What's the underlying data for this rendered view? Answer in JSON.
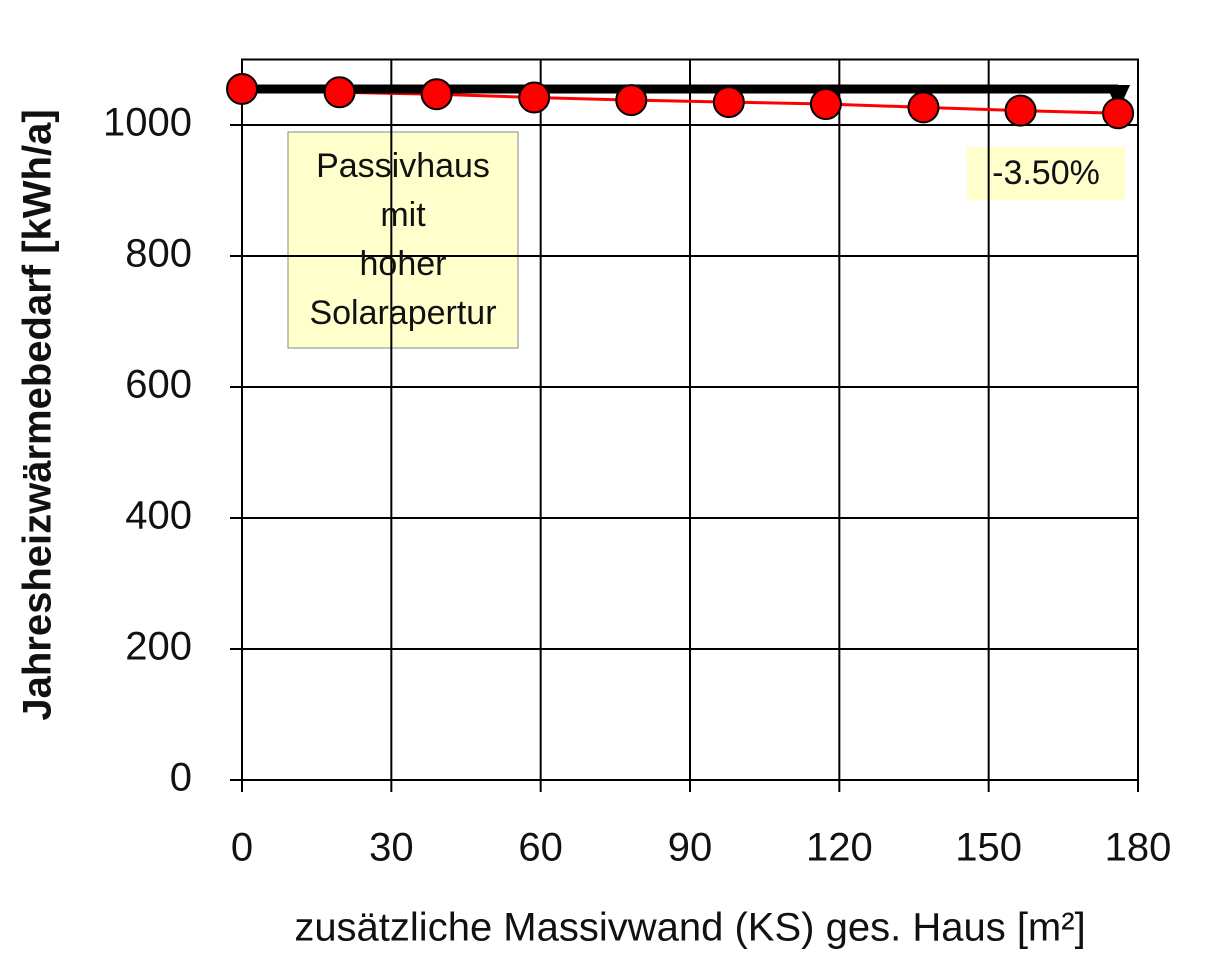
{
  "chart_data": {
    "type": "line",
    "x_label": "zusätzliche Massivwand (KS) ges. Haus [m²]",
    "y_label": "Jahresheizwärmebedarf [kWh/a]",
    "x": [
      0,
      19.6,
      39.1,
      58.7,
      78.2,
      97.8,
      117.3,
      136.9,
      156.4,
      176
    ],
    "series": [
      {
        "color": "#ff0000",
        "values": [
          1055,
          1050,
          1047,
          1042,
          1038,
          1035,
          1032,
          1027,
          1022,
          1018
        ]
      }
    ],
    "xlim": [
      0,
      180
    ],
    "xticks": [
      0,
      30,
      60,
      90,
      120,
      150,
      180
    ],
    "ylim": [
      0,
      1100
    ],
    "yticks": [
      0,
      200,
      400,
      600,
      800,
      1000
    ],
    "grid": true,
    "annotations": [
      {
        "lines": [
          "Passivhaus",
          "mit",
          "hoher",
          "Solarapertur"
        ]
      },
      {
        "text": "-3.50%"
      }
    ]
  }
}
